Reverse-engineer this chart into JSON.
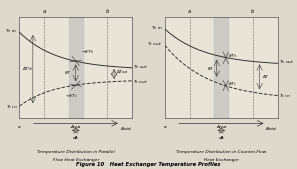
{
  "bg_color": "#ddd9cc",
  "fig_width": 2.97,
  "fig_height": 1.69,
  "dpi": 100,
  "title": "Figure 10   Heat Exchanger Temperature Profiles",
  "left_subtitle1": "Temperature Distribution in Parallel",
  "left_subtitle2": "Flow Heat Exchanger",
  "right_subtitle1": "Temperature Distribution in Counter-Flow",
  "right_subtitle2": "Heat Exchanger",
  "line_color": "#333333",
  "shade_color": "#bbbbbb",
  "fs_label": 3.8,
  "fs_small": 3.2,
  "fs_axis": 3.5,
  "fs_title": 3.8
}
